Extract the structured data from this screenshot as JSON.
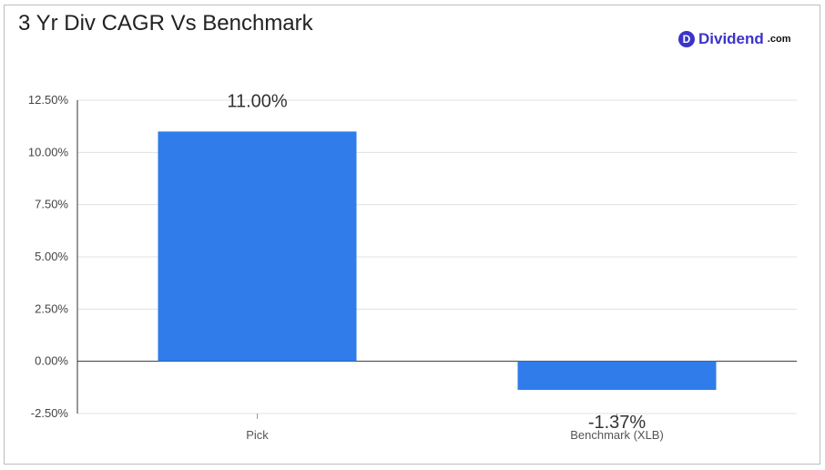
{
  "brand": {
    "badge_letter": "D",
    "name": "Dividend",
    "tld": ".com",
    "color": "#3c34c8"
  },
  "chart_data": {
    "type": "bar",
    "title": "3 Yr Div CAGR Vs Benchmark",
    "categories": [
      "Pick",
      "Benchmark (XLB)"
    ],
    "values": [
      11.0,
      -1.37
    ],
    "data_labels": [
      "11.00%",
      "-1.37%"
    ],
    "ylim": [
      -2.5,
      12.5
    ],
    "yticks": [
      12.5,
      10.0,
      7.5,
      5.0,
      2.5,
      0.0,
      -2.5
    ],
    "ytick_labels": [
      "12.50%",
      "10.00%",
      "7.50%",
      "5.00%",
      "2.50%",
      "0.00%",
      "-2.50%"
    ],
    "xlabel": "",
    "ylabel": "",
    "grid": true,
    "bar_color": "#2f7cea"
  }
}
